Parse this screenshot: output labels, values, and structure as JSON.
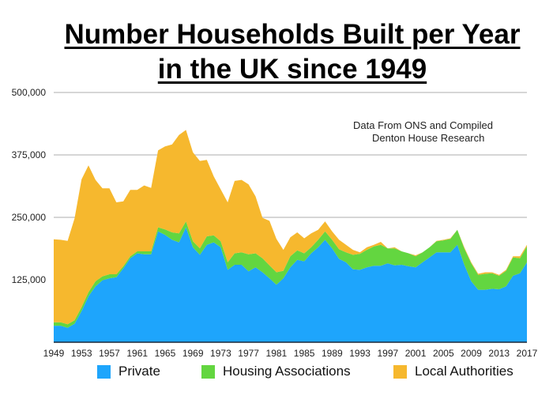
{
  "title_line1": "Number Households Built per Year",
  "title_line2": "in the UK since 1949",
  "annotation_line1": "Data From ONS and Compiled",
  "annotation_line2": "Denton House Research",
  "chart_data": {
    "type": "area",
    "stacked": true,
    "title": "Number Households Built per Year in the UK since 1949",
    "ylim": [
      0,
      500000
    ],
    "yticks": [
      0,
      125000,
      250000,
      375000,
      500000
    ],
    "ytick_labels": [
      "",
      "125,000",
      "250,000",
      "375,000",
      "500,000"
    ],
    "xlim": [
      1949,
      2017
    ],
    "xtick_labels": [
      "1949",
      "1953",
      "1957",
      "1961",
      "1965",
      "1969",
      "1973",
      "1977",
      "1981",
      "1985",
      "1989",
      "1993",
      "1997",
      "2001",
      "2005",
      "2009",
      "2013",
      "2017"
    ],
    "grid": true,
    "legend_placement": "bottom",
    "x_start": 1949,
    "series": [
      {
        "name": "Private",
        "color": "#1ea5fc",
        "values": [
          33000,
          33000,
          29000,
          37000,
          62000,
          92000,
          112000,
          124000,
          128000,
          130000,
          148000,
          168000,
          178000,
          176000,
          176000,
          222000,
          215000,
          205000,
          200000,
          230000,
          190000,
          175000,
          195000,
          200000,
          190000,
          145000,
          155000,
          155000,
          142000,
          150000,
          140000,
          128000,
          115000,
          128000,
          150000,
          165000,
          162000,
          178000,
          190000,
          205000,
          188000,
          167000,
          160000,
          146000,
          145000,
          150000,
          153000,
          153000,
          158000,
          154000,
          155000,
          152000,
          150000,
          160000,
          170000,
          180000,
          180000,
          180000,
          195000,
          155000,
          122000,
          105000,
          105000,
          107000,
          106000,
          112000,
          133000,
          138000,
          160000
        ]
      },
      {
        "name": "Housing Associations",
        "color": "#63d640",
        "values": [
          7000,
          7000,
          7000,
          7000,
          8000,
          8000,
          10000,
          8000,
          8000,
          6000,
          4000,
          4000,
          4000,
          6000,
          6000,
          8000,
          11000,
          15000,
          18000,
          12000,
          12000,
          13000,
          17000,
          14000,
          12000,
          15000,
          23000,
          25000,
          34000,
          28000,
          28000,
          26000,
          25000,
          15000,
          22000,
          19000,
          16000,
          12000,
          15000,
          17000,
          17000,
          19000,
          20000,
          29000,
          32000,
          35000,
          39000,
          42000,
          30000,
          34000,
          27000,
          26000,
          22000,
          20000,
          20000,
          22000,
          24000,
          27000,
          30000,
          33000,
          36000,
          30000,
          32000,
          31000,
          27000,
          31000,
          37000,
          30000,
          32000
        ]
      },
      {
        "name": "Local Authorities",
        "color": "#f6b82e",
        "values": [
          166000,
          165000,
          167000,
          204000,
          256000,
          254000,
          203000,
          176000,
          172000,
          144000,
          130000,
          133000,
          123000,
          132000,
          127000,
          154000,
          166000,
          176000,
          197000,
          183000,
          178000,
          175000,
          153000,
          118000,
          104000,
          120000,
          145000,
          145000,
          140000,
          114000,
          81000,
          89000,
          67000,
          42000,
          38000,
          36000,
          30000,
          28000,
          20000,
          20000,
          17000,
          19000,
          15000,
          10000,
          3000,
          5000,
          3000,
          6000,
          0,
          2000,
          0,
          0,
          2000,
          0,
          0,
          1000,
          1000,
          1000,
          0,
          2000,
          2000,
          2000,
          3000,
          2000,
          2000,
          2000,
          2000,
          4000,
          3000
        ]
      }
    ]
  }
}
